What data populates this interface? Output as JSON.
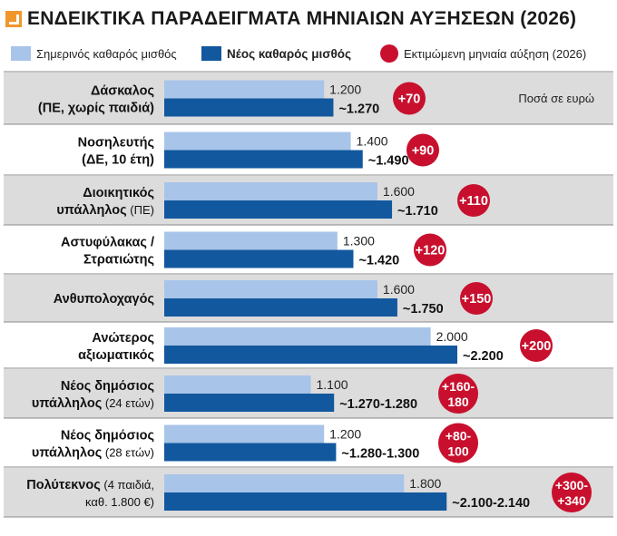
{
  "title": "ΕΝΔΕΙΚΤΙΚΑ ΠΑΡΑΔΕΙΓΜΑΤΑ ΜΗΝΙΑΙΩΝ ΑΥΞΗΣΕΩΝ (2026)",
  "colors": {
    "current": "#a8c4e8",
    "new": "#12589e",
    "increase": "#c8102e",
    "row_odd": "#dcdcdc",
    "row_even": "#ffffff"
  },
  "chart_data": {
    "type": "bar",
    "title": "ΕΝΔΕΙΚΤΙΚΑ ΠΑΡΑΔΕΙΓΜΑΤΑ ΜΗΝΙΑΙΩΝ ΑΥΞΗΣΕΩΝ (2026)",
    "unit_note": "Ποσά σε ευρώ",
    "legend": {
      "current": "Σημερινός καθαρός μισθός",
      "new": "Νέος καθαρός μισθός",
      "increase": "Εκτιμώμενη μηνιαία αύξηση (2026)"
    },
    "legend_placement": "top",
    "xlim": [
      0,
      2200
    ],
    "categories": [
      {
        "line1": "Δάσκαλος",
        "line1_extra": "",
        "line2": "(ΠΕ, χωρίς παιδιά)",
        "line2_extra": "",
        "current": 1200,
        "current_label": "1.200",
        "new": 1270,
        "new_label": "~1.270",
        "increase": [
          "+70"
        ]
      },
      {
        "line1": "Νοσηλευτής",
        "line1_extra": "",
        "line2": "(ΔΕ, 10 έτη)",
        "line2_extra": "",
        "current": 1400,
        "current_label": "1.400",
        "new": 1490,
        "new_label": "~1.490",
        "increase": [
          "+90"
        ]
      },
      {
        "line1": "Διοικητικός",
        "line1_extra": "",
        "line2": "υπάλληλος",
        "line2_extra": " (ΠΕ)",
        "current": 1600,
        "current_label": "1.600",
        "new": 1710,
        "new_label": "~1.710",
        "increase": [
          "+110"
        ]
      },
      {
        "line1": "Αστυφύλακας /",
        "line1_extra": "",
        "line2": "Στρατιώτης",
        "line2_extra": "",
        "current": 1300,
        "current_label": "1.300",
        "new": 1420,
        "new_label": "~1.420",
        "increase": [
          "+120"
        ]
      },
      {
        "line1": "Ανθυπολοχαγός",
        "line1_extra": "",
        "line2": "",
        "line2_extra": "",
        "current": 1600,
        "current_label": "1.600",
        "new": 1750,
        "new_label": "~1.750",
        "increase": [
          "+150"
        ]
      },
      {
        "line1": "Ανώτερος",
        "line1_extra": "",
        "line2": "αξιωματικός",
        "line2_extra": "",
        "current": 2000,
        "current_label": "2.000",
        "new": 2200,
        "new_label": "~2.200",
        "increase": [
          "+200"
        ]
      },
      {
        "line1": "Νέος δημόσιος",
        "line1_extra": "",
        "line2": "υπάλληλος",
        "line2_extra": " (24 ετών)",
        "current": 1100,
        "current_label": "1.100",
        "new": 1275,
        "new_label": "~1.270-1.280",
        "increase": [
          "+160-",
          "180"
        ]
      },
      {
        "line1": "Νέος δημόσιος",
        "line1_extra": "",
        "line2": "υπάλληλος",
        "line2_extra": " (28 ετών)",
        "current": 1200,
        "current_label": "1.200",
        "new": 1290,
        "new_label": "~1.280-1.300",
        "increase": [
          "+80-",
          "100"
        ]
      },
      {
        "line1": "Πολύτεκνος",
        "line1_extra": " (4 παιδιά,",
        "line2": "",
        "line2_extra": "καθ. 1.800 €)",
        "current": 1800,
        "current_label": "1.800",
        "new": 2120,
        "new_label": "~2.100-2.140",
        "increase": [
          "+300-",
          "+340"
        ]
      }
    ]
  }
}
